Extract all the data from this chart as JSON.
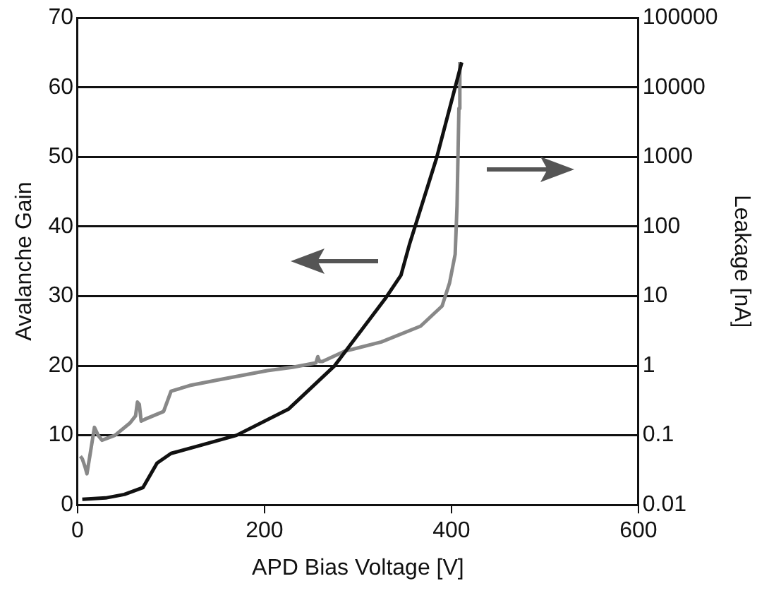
{
  "chart_data": {
    "type": "line",
    "xlabel": "APD Bias Voltage [V]",
    "ylabel": "Avalanche Gain",
    "y2label": "Leakage [nA]",
    "xlim": [
      0,
      600
    ],
    "xticks": [
      0,
      200,
      400,
      600
    ],
    "ylim": [
      0,
      70
    ],
    "yticks": [
      0,
      10,
      20,
      30,
      40,
      50,
      60,
      70
    ],
    "y2lim": [
      0.01,
      100000
    ],
    "y2ticks": [
      0.01,
      0.1,
      1,
      10,
      100,
      1000,
      10000,
      100000
    ],
    "log": "y2",
    "grid": "y",
    "legend": false,
    "marker": "none",
    "line_style": "solid",
    "series": [
      {
        "color": "#111111",
        "axis": "y",
        "x": [
          5,
          30,
          50,
          70,
          85,
          100,
          130,
          170,
          226,
          275,
          330,
          346,
          355,
          384,
          411
        ],
        "values": [
          0.8,
          1,
          1.5,
          2.5,
          6,
          7.4,
          8.5,
          10,
          13.8,
          20,
          29.8,
          33,
          37.4,
          49.8,
          63.6
        ]
      },
      {
        "color": "#888888",
        "axis": "y2",
        "x": [
          3,
          5,
          8,
          10,
          14,
          18,
          22,
          26,
          40,
          56,
          62,
          64,
          66,
          68,
          72,
          92,
          100,
          120,
          149,
          203,
          230,
          255,
          257,
          259,
          262,
          285,
          325,
          367,
          390,
          398,
          404,
          406,
          408,
          409
        ],
        "values": [
          0.05,
          0.046,
          0.035,
          0.028,
          0.06,
          0.13,
          0.1,
          0.085,
          0.1,
          0.15,
          0.19,
          0.3,
          0.28,
          0.16,
          0.17,
          0.22,
          0.43,
          0.52,
          0.62,
          0.85,
          0.95,
          1.1,
          1.35,
          1.15,
          1.15,
          1.6,
          2.2,
          3.7,
          7.2,
          15.5,
          40,
          200,
          5000,
          23000
        ]
      }
    ]
  }
}
